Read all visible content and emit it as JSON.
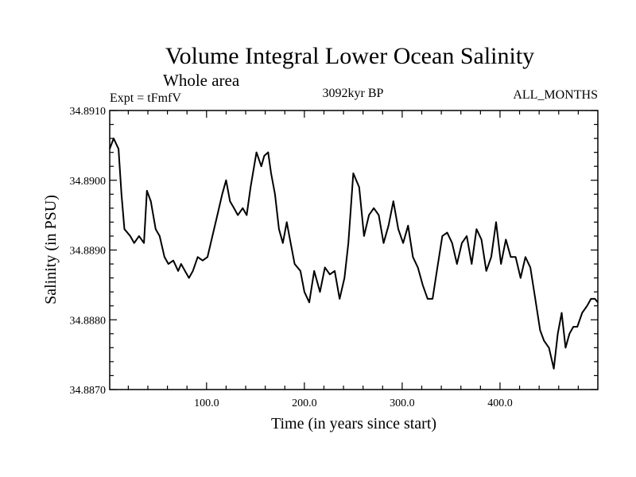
{
  "chart_data": {
    "type": "line",
    "title": "Volume Integral Lower Ocean Salinity",
    "subtitle": "Whole area",
    "expt_label": "Expt = tFmfV",
    "period_label": "3092kyr BP",
    "months_label": "ALL_MONTHS",
    "xlabel": "Time (in years since start)",
    "ylabel": "Salinity (in PSU)",
    "xlim": [
      1,
      500
    ],
    "ylim": [
      34.887,
      34.891
    ],
    "x_ticks": [
      100,
      200,
      300,
      400
    ],
    "x_tick_labels": [
      "100.0",
      "200.0",
      "300.0",
      "400.0"
    ],
    "y_ticks": [
      34.887,
      34.888,
      34.889,
      34.89,
      34.891
    ],
    "y_tick_labels": [
      "34.8870",
      "34.8880",
      "34.8890",
      "34.8900",
      "34.8910"
    ],
    "series": [
      {
        "name": "salinity",
        "color": "#000000",
        "x": [
          1,
          5,
          10,
          13,
          16,
          22,
          26,
          31,
          36,
          39,
          43,
          48,
          52,
          57,
          61,
          66,
          71,
          74,
          78,
          82,
          86,
          91,
          96,
          101,
          106,
          111,
          116,
          120,
          124,
          128,
          132,
          137,
          141,
          145,
          151,
          156,
          159,
          163,
          166,
          170,
          174,
          178,
          182,
          186,
          190,
          196,
          200,
          205,
          210,
          216,
          221,
          226,
          231,
          236,
          241,
          245,
          250,
          256,
          261,
          266,
          271,
          276,
          281,
          286,
          291,
          296,
          301,
          306,
          311,
          316,
          321,
          326,
          331,
          336,
          341,
          346,
          351,
          356,
          361,
          366,
          371,
          376,
          381,
          386,
          391,
          396,
          401,
          406,
          411,
          416,
          421,
          426,
          431,
          436,
          441,
          445,
          450,
          455,
          459,
          463,
          467,
          471,
          475,
          479,
          484,
          489,
          493,
          497,
          500
        ],
        "y": [
          34.89045,
          34.8906,
          34.89045,
          34.8898,
          34.8893,
          34.8892,
          34.8891,
          34.8892,
          34.8891,
          34.88985,
          34.8897,
          34.8893,
          34.8892,
          34.8889,
          34.8888,
          34.88885,
          34.8887,
          34.8888,
          34.8887,
          34.8886,
          34.8887,
          34.8889,
          34.88885,
          34.8889,
          34.8892,
          34.8895,
          34.8898,
          34.89,
          34.8897,
          34.8896,
          34.8895,
          34.8896,
          34.8895,
          34.8899,
          34.8904,
          34.8902,
          34.89035,
          34.8904,
          34.8901,
          34.8898,
          34.8893,
          34.8891,
          34.8894,
          34.8891,
          34.8888,
          34.8887,
          34.8884,
          34.88825,
          34.8887,
          34.8884,
          34.88875,
          34.88865,
          34.8887,
          34.8883,
          34.8886,
          34.8891,
          34.8901,
          34.8899,
          34.8892,
          34.8895,
          34.8896,
          34.8895,
          34.8891,
          34.88935,
          34.8897,
          34.8893,
          34.8891,
          34.88935,
          34.8889,
          34.88875,
          34.8885,
          34.8883,
          34.8883,
          34.88875,
          34.8892,
          34.88925,
          34.8891,
          34.8888,
          34.8891,
          34.8892,
          34.8888,
          34.8893,
          34.88915,
          34.8887,
          34.8889,
          34.8894,
          34.8888,
          34.88915,
          34.8889,
          34.8889,
          34.8886,
          34.8889,
          34.88875,
          34.8883,
          34.88785,
          34.8877,
          34.8876,
          34.8873,
          34.8878,
          34.8881,
          34.8876,
          34.8878,
          34.8879,
          34.8879,
          34.8881,
          34.8882,
          34.8883,
          34.8883,
          34.88825
        ]
      }
    ]
  }
}
